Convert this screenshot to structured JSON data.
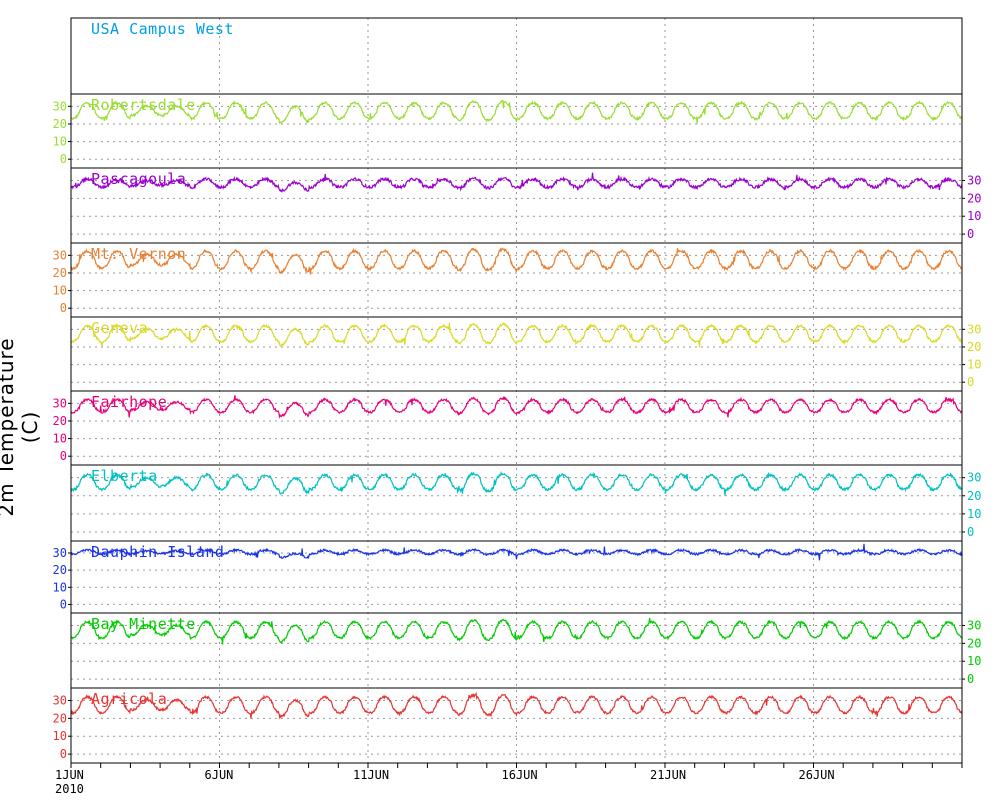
{
  "chart_data": {
    "type": "line",
    "ylabel": "2m Temperature (C)",
    "x_ticks": [
      {
        "day": 1,
        "label": "1JUN"
      },
      {
        "day": 6,
        "label": "6JUN"
      },
      {
        "day": 11,
        "label": "11JUN"
      },
      {
        "day": 16,
        "label": "16JUN"
      },
      {
        "day": 21,
        "label": "21JUN"
      },
      {
        "day": 26,
        "label": "26JUN"
      }
    ],
    "x_year": "2010",
    "xlim_days": [
      1,
      31
    ],
    "ylim": [
      -5,
      37
    ],
    "y_ticks": [
      0,
      10,
      20,
      30
    ],
    "grid": "dotted",
    "panels": [
      {
        "name": "USA Campus West",
        "color": "#00a0e6",
        "axis": "none",
        "diurnal": false,
        "offset": 0,
        "amp": 0,
        "noise": 0
      },
      {
        "name": "Robertsdale",
        "color": "#99dd33",
        "axis": "left",
        "diurnal": true,
        "offset": 0,
        "amp": 1.0,
        "noise": 0.6
      },
      {
        "name": "Pascagoula",
        "color": "#9900cc",
        "axis": "right",
        "diurnal": true,
        "offset": 1,
        "amp": 0.5,
        "noise": 0.8
      },
      {
        "name": "Mt. Vernon",
        "color": "#e68033",
        "axis": "left",
        "diurnal": true,
        "offset": 0,
        "amp": 1.1,
        "noise": 0.7
      },
      {
        "name": "Geneva",
        "color": "#d9d926",
        "axis": "right",
        "diurnal": true,
        "offset": 0,
        "amp": 1.0,
        "noise": 0.6
      },
      {
        "name": "Fairhope",
        "color": "#e6007a",
        "axis": "left",
        "diurnal": true,
        "offset": 1,
        "amp": 0.8,
        "noise": 0.6
      },
      {
        "name": "Elberta",
        "color": "#00c0c0",
        "axis": "right",
        "diurnal": true,
        "offset": 0,
        "amp": 0.9,
        "noise": 0.7
      },
      {
        "name": "Dauphin Island",
        "color": "#1a33e6",
        "axis": "left",
        "diurnal": true,
        "offset": 3,
        "amp": 0.25,
        "noise": 0.6
      },
      {
        "name": "Bay Minette",
        "color": "#00cc00",
        "axis": "right",
        "diurnal": true,
        "offset": 0,
        "amp": 1.0,
        "noise": 0.6
      },
      {
        "name": "Agricola",
        "color": "#e63333",
        "axis": "left",
        "diurnal": true,
        "offset": 0,
        "amp": 1.0,
        "noise": 0.6
      }
    ],
    "series_model": {
      "daily_min_c": 23,
      "daily_max_c": 32,
      "peak_day_values": [
        15,
        17.5,
        25.5
      ],
      "cool_day_values": [
        3,
        8,
        21.5
      ]
    }
  }
}
